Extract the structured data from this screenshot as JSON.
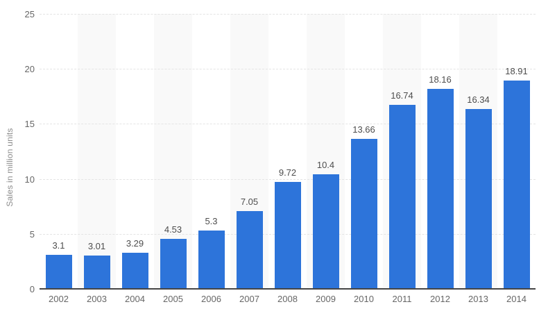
{
  "chart_data": {
    "type": "bar",
    "title": "",
    "xlabel": "",
    "ylabel": "Sales in million units",
    "categories": [
      "2002",
      "2003",
      "2004",
      "2005",
      "2006",
      "2007",
      "2008",
      "2009",
      "2010",
      "2011",
      "2012",
      "2013",
      "2014"
    ],
    "values": [
      3.1,
      3.01,
      3.29,
      4.53,
      5.3,
      7.05,
      9.72,
      10.4,
      13.66,
      16.74,
      18.16,
      16.34,
      18.91
    ],
    "value_labels": [
      "3.1",
      "3.01",
      "3.29",
      "4.53",
      "5.3",
      "7.05",
      "9.72",
      "10.4",
      "13.66",
      "16.74",
      "18.16",
      "16.34",
      "18.91"
    ],
    "yticks": [
      "0",
      "5",
      "10",
      "15",
      "20",
      "25"
    ],
    "ytick_values": [
      0,
      5,
      10,
      15,
      20,
      25
    ],
    "ylim": [
      0,
      25
    ],
    "grid": "horizontal-dashed",
    "legend": "none",
    "striped_column_indices": [
      1,
      3,
      5,
      7,
      9,
      11
    ],
    "colors": {
      "bar": "#2d74da",
      "value_label": "#4d4d4d",
      "tick_label": "#666666",
      "axis_title": "#8c8c8c",
      "gridline": "#e4e4e4",
      "column_band": "#f9f9f9",
      "axis_line": "#454545",
      "background": "#ffffff"
    }
  }
}
